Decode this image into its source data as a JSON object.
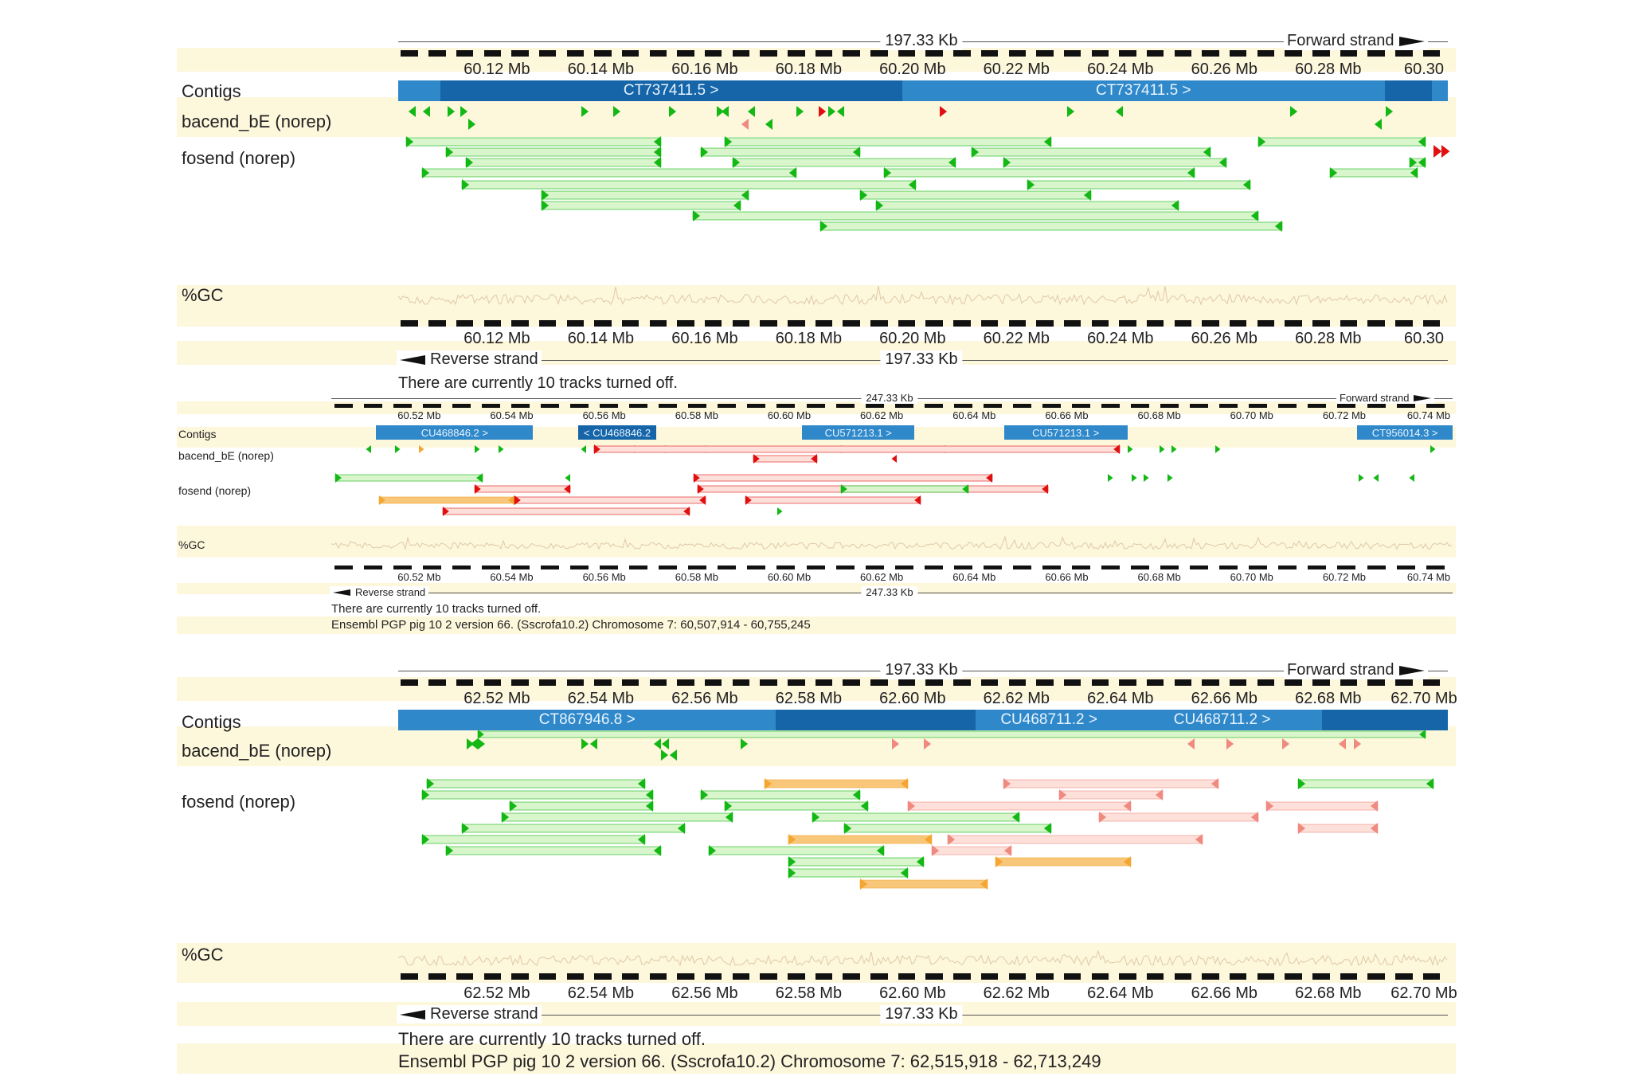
{
  "panels": [
    {
      "id": "panel-1",
      "partial": true,
      "kb_label": "197.33 Kb",
      "forward_label": "Forward strand",
      "reverse_label": "Reverse strand",
      "mb_labels": [
        "60.12 Mb",
        "60.14 Mb",
        "60.16 Mb",
        "60.18 Mb",
        "60.20 Mb",
        "60.22 Mb",
        "60.24 Mb",
        "60.26 Mb",
        "60.28 Mb",
        "60.30"
      ],
      "tracks": {
        "contigs": "Contigs",
        "bacend": "bacend_bE (norep)",
        "fosend": "fosend (norep)",
        "gc": "%GC"
      },
      "contigs": [
        {
          "label": "CT737411.5 >",
          "start": 0.04,
          "end": 0.48,
          "shade": "dark"
        },
        {
          "label": "CT737411.5 >",
          "start": 0.48,
          "end": 0.94,
          "shade": "light"
        },
        {
          "label": "",
          "start": 0.94,
          "end": 0.985,
          "shade": "dark"
        }
      ],
      "footer": [],
      "truncated_footer": "There are currently 10 tracks turned off."
    },
    {
      "id": "panel-2",
      "partial": false,
      "kb_label": "247.33 Kb",
      "forward_label": "Forward strand",
      "reverse_label": "Reverse strand",
      "mb_labels": [
        "60.52 Mb",
        "60.54 Mb",
        "60.56 Mb",
        "60.58 Mb",
        "60.60 Mb",
        "60.62 Mb",
        "60.64 Mb",
        "60.66 Mb",
        "60.68 Mb",
        "60.70 Mb",
        "60.72 Mb",
        "60.74 Mb"
      ],
      "tracks": {
        "contigs": "Contigs",
        "bacend": "bacend_bE (norep)",
        "fosend": "fosend (norep)",
        "gc": "%GC"
      },
      "contigs": [
        {
          "label": "CU468846.2 >",
          "start": 0.04,
          "end": 0.18,
          "shade": "light"
        },
        {
          "label": "< CU468846.2",
          "start": 0.22,
          "end": 0.29,
          "shade": "dark"
        },
        {
          "label": "CU571213.1 >",
          "start": 0.42,
          "end": 0.52,
          "shade": "light"
        },
        {
          "label": "CU571213.1 >",
          "start": 0.6,
          "end": 0.71,
          "shade": "light"
        },
        {
          "label": "CT956014.3 >",
          "start": 0.915,
          "end": 1.0,
          "shade": "light"
        }
      ],
      "footer": [
        "There are currently 10 tracks turned off.",
        "Ensembl PGP pig 10 2 version 66. (Sscrofa10.2) Chromosome 7: 60,507,914 - 60,755,245"
      ]
    },
    {
      "id": "panel-3",
      "partial": false,
      "kb_label": "197.33 Kb",
      "forward_label": "Forward strand",
      "reverse_label": "Reverse strand",
      "mb_labels": [
        "62.52 Mb",
        "62.54 Mb",
        "62.56 Mb",
        "62.58 Mb",
        "62.60 Mb",
        "62.62 Mb",
        "62.64 Mb",
        "62.66 Mb",
        "62.68 Mb",
        "62.70 Mb"
      ],
      "tracks": {
        "contigs": "Contigs",
        "bacend": "bacend_bE (norep)",
        "fosend": "fosend (norep)",
        "gc": "%GC"
      },
      "contigs": [
        {
          "label": "CT867946.8 >",
          "start": 0.0,
          "end": 0.36,
          "shade": "light"
        },
        {
          "label": "",
          "start": 0.36,
          "end": 0.55,
          "shade": "dark"
        },
        {
          "label": "CU468711.2 >",
          "start": 0.55,
          "end": 0.69,
          "shade": "light"
        },
        {
          "label": "CU468711.2 >",
          "start": 0.69,
          "end": 0.88,
          "shade": "light"
        },
        {
          "label": "",
          "start": 0.88,
          "end": 1.0,
          "shade": "dark"
        }
      ],
      "footer": [
        "There are currently 10 tracks turned off.",
        "Ensembl PGP pig 10 2 version 66. (Sscrofa10.2) Chromosome 7: 62,515,918 - 62,713,249"
      ]
    }
  ],
  "colors": {
    "band": "#fdf7dc",
    "contig_light": "#2f88c9",
    "contig_dark": "#1565a8",
    "feature_green": "#14b814",
    "feature_green_fill": "#d8f5cc",
    "feature_red": "#e01010",
    "feature_pink": "#f08a80",
    "feature_pink_fill": "#fde0da",
    "feature_orange": "#f3a632",
    "feature_orange_fill": "#f8c77a"
  }
}
